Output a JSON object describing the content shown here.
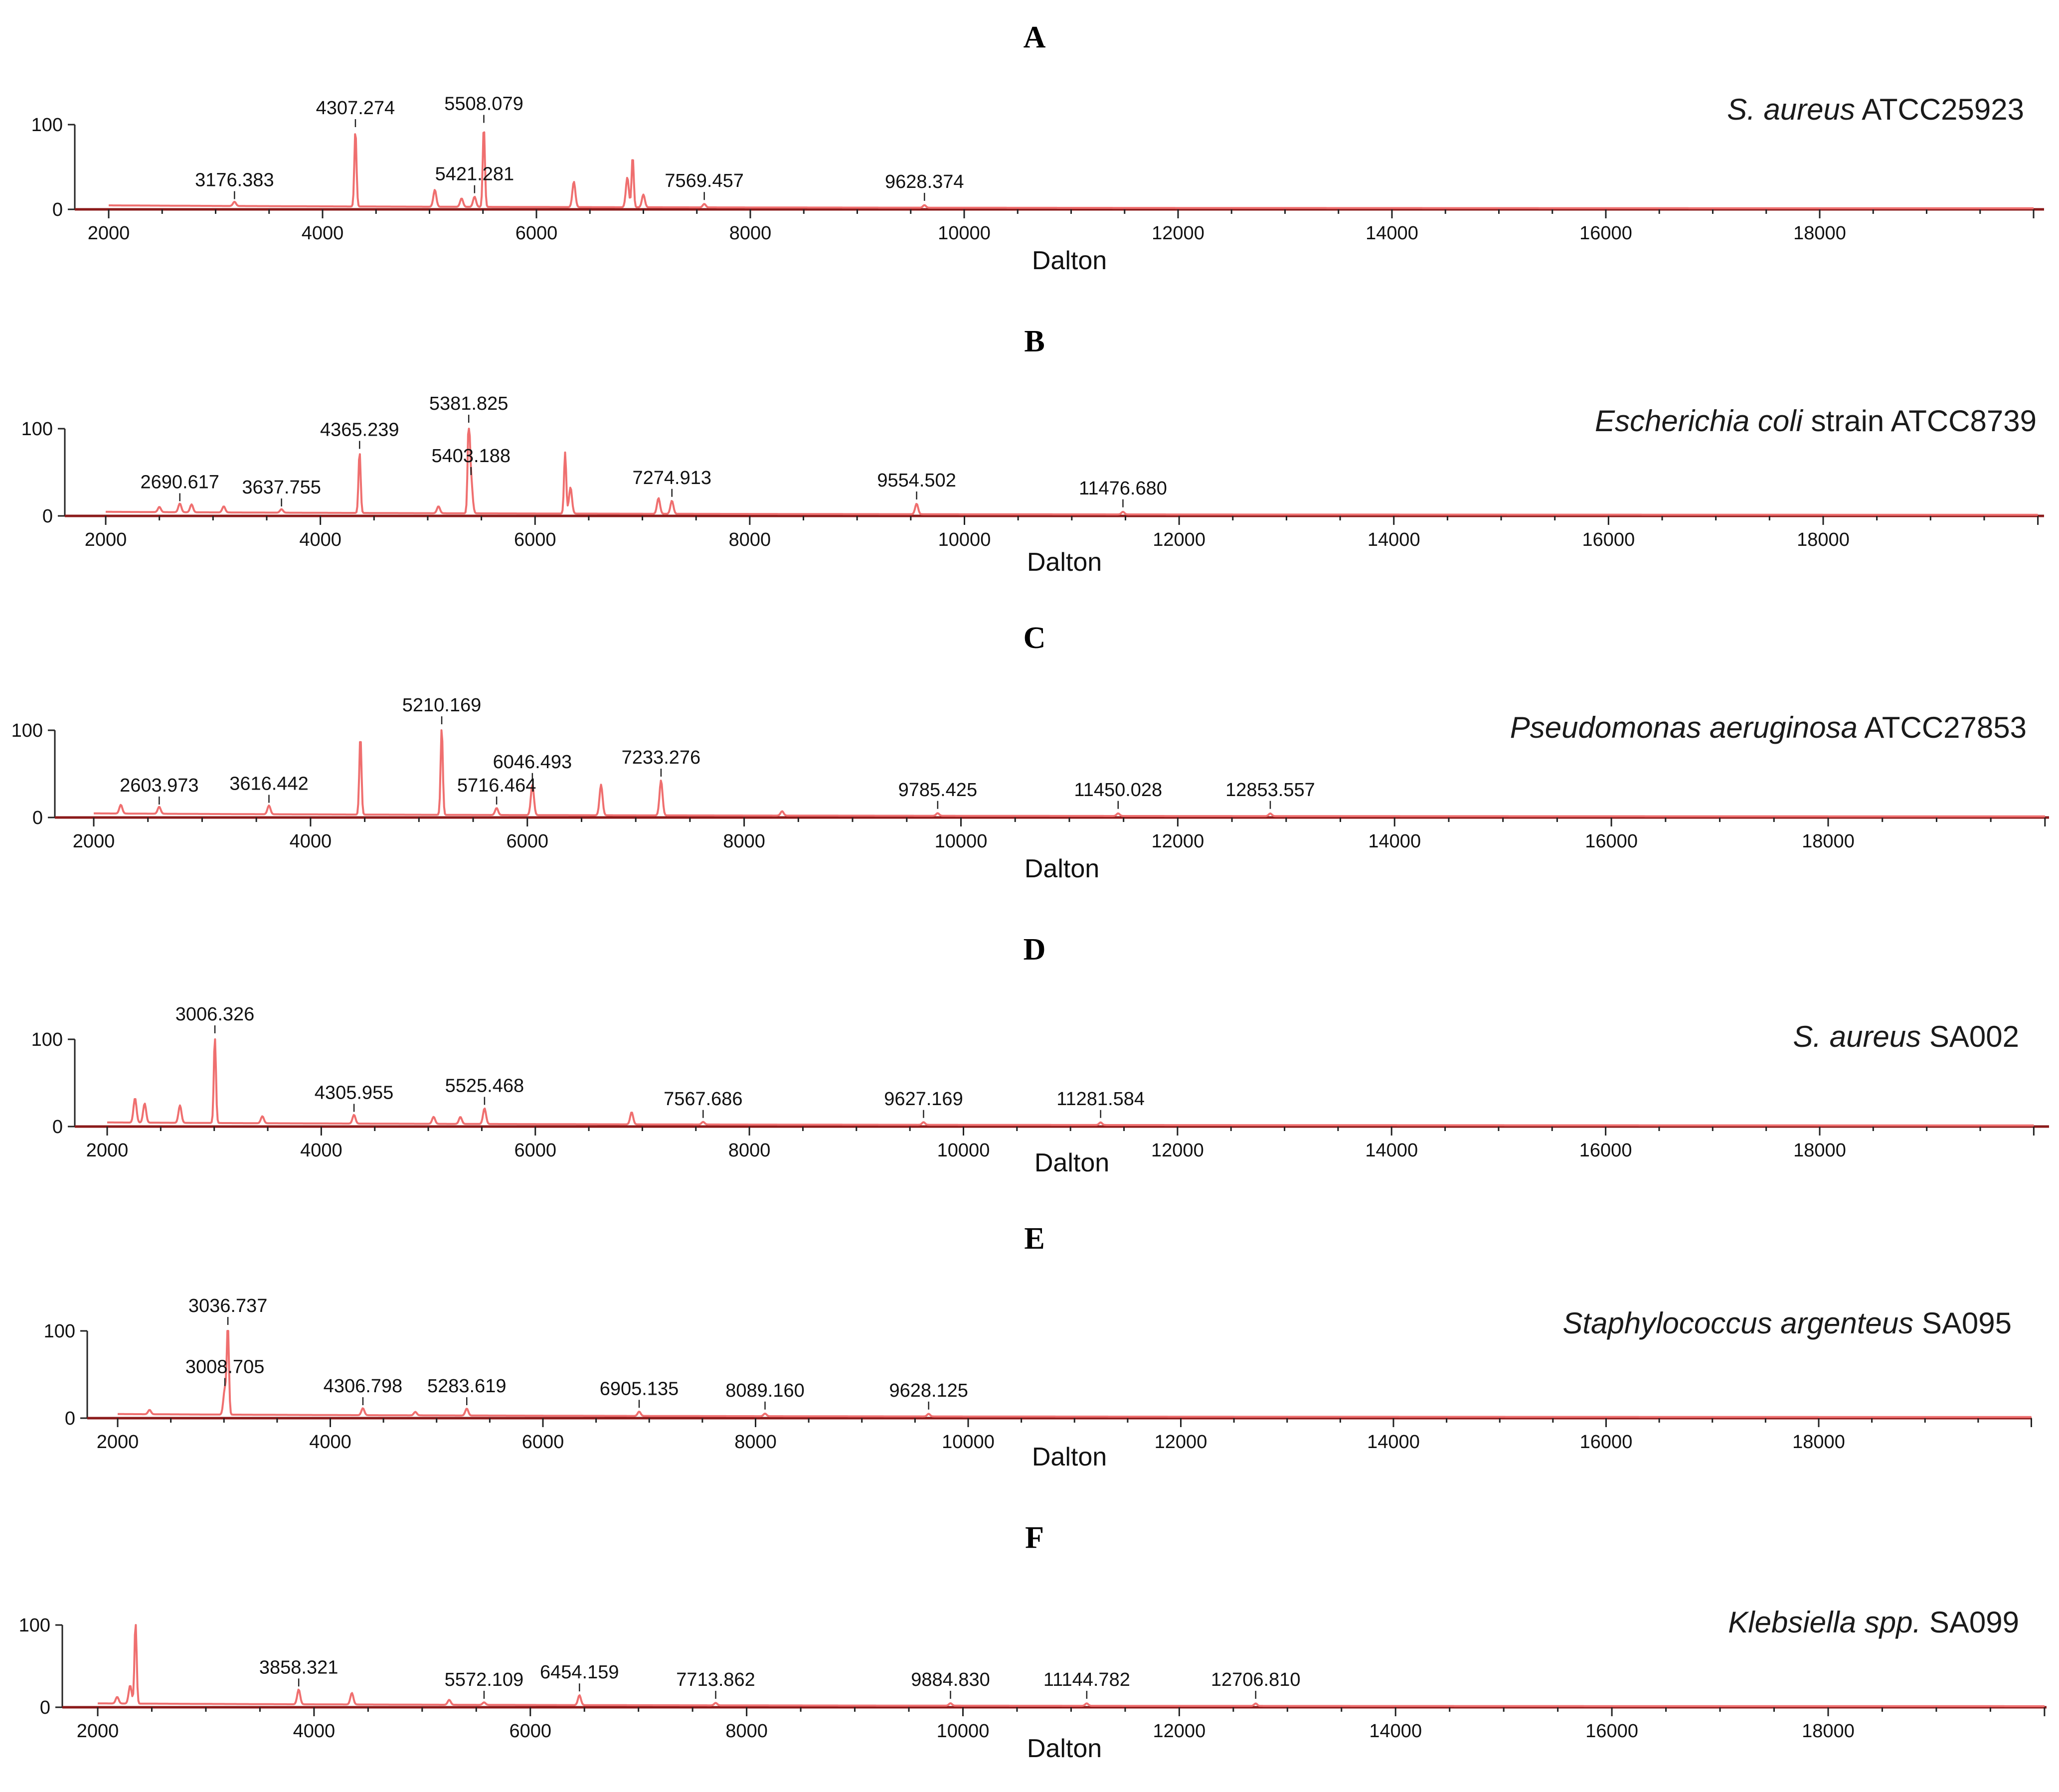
{
  "figure": {
    "accent_color": "#ef6f6f",
    "baseline_color": "#8b1a1a"
  },
  "chart_data": [
    {
      "type": "line",
      "panel": "A",
      "organism": {
        "italic": "S. aureus",
        "rest": " ATCC25923"
      },
      "xlabel": "Dalton",
      "xlim": [
        2000,
        20000
      ],
      "ylim": [
        0,
        100
      ],
      "yticks": [
        0,
        100
      ],
      "xticks": [
        2000,
        4000,
        6000,
        8000,
        10000,
        12000,
        14000,
        16000,
        18000
      ],
      "peaks": [
        {
          "x": 4307.274,
          "label": "4307.274",
          "height": 90
        },
        {
          "x": 5508.079,
          "label": "5508.079",
          "height": 95
        },
        {
          "x": 3176.383,
          "label": "3176.383",
          "height": 5
        },
        {
          "x": 5421.281,
          "label": "5421.281",
          "height": 12
        },
        {
          "x": 7569.457,
          "label": "7569.457",
          "height": 4
        },
        {
          "x": 9628.374,
          "label": "9628.374",
          "height": 3
        }
      ],
      "unlabeled_peaks": [
        [
          5050,
          20
        ],
        [
          5300,
          10
        ],
        [
          6350,
          30
        ],
        [
          6850,
          35
        ],
        [
          6900,
          60
        ],
        [
          7000,
          15
        ]
      ]
    },
    {
      "type": "line",
      "panel": "B",
      "organism": {
        "italic": "Escherichia coli",
        "rest": " strain ATCC8739"
      },
      "xlabel": "Dalton",
      "xlim": [
        2000,
        20000
      ],
      "ylim": [
        0,
        100
      ],
      "yticks": [
        0,
        100
      ],
      "xticks": [
        2000,
        4000,
        6000,
        8000,
        10000,
        12000,
        14000,
        16000,
        18000
      ],
      "peaks": [
        {
          "x": 4365.239,
          "label": "4365.239",
          "height": 70
        },
        {
          "x": 5381.825,
          "label": "5381.825",
          "height": 100
        },
        {
          "x": 5403.188,
          "label": "5403.188",
          "height": 40
        },
        {
          "x": 2690.617,
          "label": "2690.617",
          "height": 10
        },
        {
          "x": 3637.755,
          "label": "3637.755",
          "height": 4
        },
        {
          "x": 7274.913,
          "label": "7274.913",
          "height": 15
        },
        {
          "x": 9554.502,
          "label": "9554.502",
          "height": 12
        },
        {
          "x": 11476.68,
          "label": "11476.680",
          "height": 3
        }
      ],
      "unlabeled_peaks": [
        [
          2500,
          6
        ],
        [
          2800,
          9
        ],
        [
          3100,
          7
        ],
        [
          5100,
          8
        ],
        [
          6280,
          70
        ],
        [
          6330,
          30
        ],
        [
          7150,
          18
        ]
      ]
    },
    {
      "type": "line",
      "panel": "C",
      "organism": {
        "italic": "Pseudomonas aeruginosa",
        "rest": " ATCC27853"
      },
      "xlabel": "Dalton",
      "xlim": [
        2000,
        20000
      ],
      "ylim": [
        0,
        100
      ],
      "yticks": [
        0,
        100
      ],
      "xticks": [
        2000,
        4000,
        6000,
        8000,
        10000,
        12000,
        14000,
        16000,
        18000
      ],
      "peaks": [
        {
          "x": 5210.169,
          "label": "5210.169",
          "height": 100
        },
        {
          "x": 6046.493,
          "label": "6046.493",
          "height": 35
        },
        {
          "x": 7233.276,
          "label": "7233.276",
          "height": 40
        },
        {
          "x": 2603.973,
          "label": "2603.973",
          "height": 8
        },
        {
          "x": 3616.442,
          "label": "3616.442",
          "height": 10
        },
        {
          "x": 5716.464,
          "label": "5716.464",
          "height": 8
        },
        {
          "x": 9785.425,
          "label": "9785.425",
          "height": 3
        },
        {
          "x": 11450.028,
          "label": "11450.028",
          "height": 3
        },
        {
          "x": 12853.557,
          "label": "12853.557",
          "height": 3
        }
      ],
      "unlabeled_peaks": [
        [
          2250,
          10
        ],
        [
          4460,
          90
        ],
        [
          6680,
          35
        ],
        [
          8350,
          5
        ]
      ]
    },
    {
      "type": "line",
      "panel": "D",
      "organism": {
        "italic": "S. aureus",
        "rest": " SA002"
      },
      "xlabel": "Dalton",
      "xlim": [
        2000,
        20000
      ],
      "ylim": [
        0,
        100
      ],
      "yticks": [
        0,
        100
      ],
      "xticks": [
        2000,
        4000,
        6000,
        8000,
        10000,
        12000,
        14000,
        16000,
        18000
      ],
      "peaks": [
        {
          "x": 3006.326,
          "label": "3006.326",
          "height": 100
        },
        {
          "x": 4305.955,
          "label": "4305.955",
          "height": 10
        },
        {
          "x": 5525.468,
          "label": "5525.468",
          "height": 18
        },
        {
          "x": 7567.686,
          "label": "7567.686",
          "height": 3
        },
        {
          "x": 9627.169,
          "label": "9627.169",
          "height": 3
        },
        {
          "x": 11281.584,
          "label": "11281.584",
          "height": 3
        }
      ],
      "unlabeled_peaks": [
        [
          2260,
          28
        ],
        [
          2350,
          22
        ],
        [
          2680,
          20
        ],
        [
          3450,
          8
        ],
        [
          5050,
          8
        ],
        [
          5300,
          8
        ],
        [
          6900,
          14
        ]
      ]
    },
    {
      "type": "line",
      "panel": "E",
      "organism": {
        "italic": "Staphylococcus argenteus",
        "rest": " SA095"
      },
      "xlabel": "Dalton",
      "xlim": [
        2000,
        20000
      ],
      "ylim": [
        0,
        100
      ],
      "yticks": [
        0,
        100
      ],
      "xticks": [
        2000,
        4000,
        6000,
        8000,
        10000,
        12000,
        14000,
        16000,
        18000
      ],
      "peaks": [
        {
          "x": 3036.737,
          "label": "3036.737",
          "height": 100
        },
        {
          "x": 3008.705,
          "label": "3008.705",
          "height": 30
        },
        {
          "x": 4306.798,
          "label": "4306.798",
          "height": 8
        },
        {
          "x": 5283.619,
          "label": "5283.619",
          "height": 8
        },
        {
          "x": 6905.135,
          "label": "6905.135",
          "height": 5
        },
        {
          "x": 8089.16,
          "label": "8089.160",
          "height": 3
        },
        {
          "x": 9628.125,
          "label": "9628.125",
          "height": 3
        }
      ],
      "unlabeled_peaks": [
        [
          2300,
          5
        ],
        [
          4800,
          4
        ]
      ]
    },
    {
      "type": "line",
      "panel": "F",
      "organism": {
        "italic": "Klebsiella spp.",
        "rest": " SA099"
      },
      "xlabel": "Dalton",
      "xlim": [
        2000,
        20000
      ],
      "ylim": [
        0,
        100
      ],
      "yticks": [
        0,
        100
      ],
      "xticks": [
        2000,
        4000,
        6000,
        8000,
        10000,
        12000,
        14000,
        16000,
        18000
      ],
      "peaks": [
        {
          "x": 3858.321,
          "label": "3858.321",
          "height": 18
        },
        {
          "x": 5572.109,
          "label": "5572.109",
          "height": 3
        },
        {
          "x": 6454.159,
          "label": "6454.159",
          "height": 12
        },
        {
          "x": 7713.862,
          "label": "7713.862",
          "height": 3
        },
        {
          "x": 9884.83,
          "label": "9884.830",
          "height": 3
        },
        {
          "x": 11144.782,
          "label": "11144.782",
          "height": 3
        },
        {
          "x": 12706.81,
          "label": "12706.810",
          "height": 3
        }
      ],
      "unlabeled_peaks": [
        [
          2180,
          8
        ],
        [
          2300,
          22
        ],
        [
          2350,
          100
        ],
        [
          4350,
          14
        ],
        [
          5250,
          6
        ]
      ]
    }
  ]
}
